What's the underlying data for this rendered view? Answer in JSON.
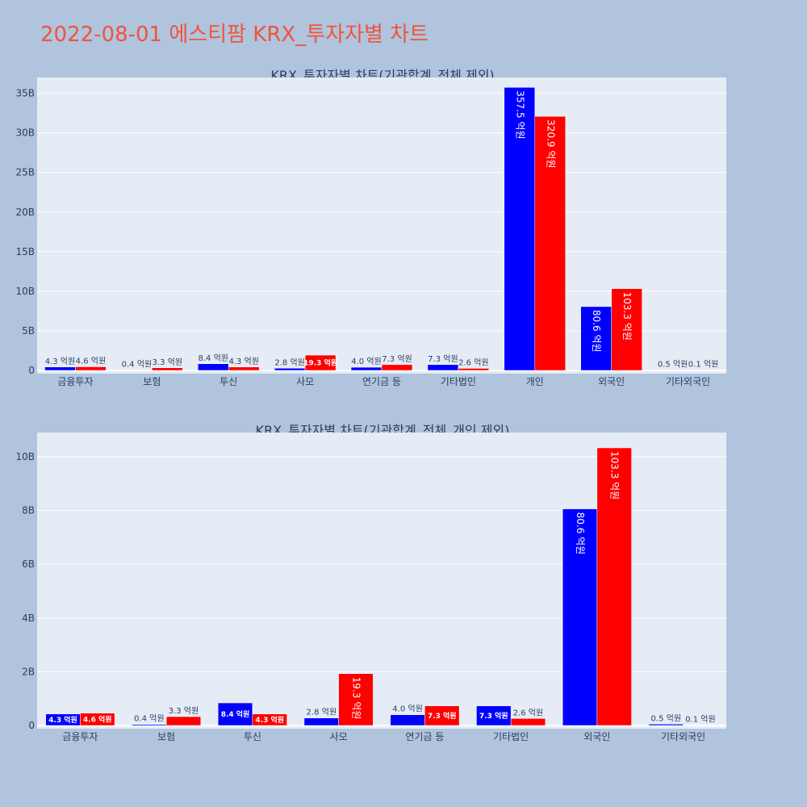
{
  "page": {
    "title": "2022-08-01 에스티팜 KRX_투자자별 차트"
  },
  "colors": {
    "page_background": "#b0c4de",
    "plot_background": "#e5ecf6",
    "title": "#ef553b",
    "series_1": "#0000ff",
    "series_2": "#ff0000",
    "text": "#2a3f5f"
  },
  "chart_data": [
    {
      "type": "bar",
      "title": "KRX_투자자별 차트(기관합계_전체 제외)",
      "categories": [
        "금융투자",
        "보험",
        "투신",
        "사모",
        "연기금 등",
        "기타법인",
        "개인",
        "외국인",
        "기타외국인"
      ],
      "series": [
        {
          "color": "#0000ff",
          "values": [
            0.43,
            0.04,
            0.84,
            0.28,
            0.4,
            0.73,
            35.75,
            8.06,
            0.05
          ],
          "labels": [
            "4.3 억원",
            "0.4 억원",
            "8.4 억원",
            "2.8 억원",
            "4.0 억원",
            "7.3 억원",
            "357.5 억원",
            "80.6 억원",
            "0.5 억원"
          ]
        },
        {
          "color": "#ff0000",
          "values": [
            0.46,
            0.33,
            0.43,
            1.93,
            0.73,
            0.26,
            32.09,
            10.33,
            0.01
          ],
          "labels": [
            "4.6 억원",
            "3.3 억원",
            "4.3 억원",
            "19.3 억원",
            "7.3 억원",
            "2.6 억원",
            "320.9 억원",
            "103.3 억원",
            "0.1 억원"
          ]
        }
      ],
      "ylim": [
        0,
        37
      ],
      "yticks": [
        0,
        5,
        10,
        15,
        20,
        25,
        30,
        35
      ],
      "ytick_labels": [
        "0",
        "5B",
        "10B",
        "15B",
        "20B",
        "25B",
        "30B",
        "35B"
      ],
      "grid": true,
      "legend": "none"
    },
    {
      "type": "bar",
      "title": "KRX_투자자별 차트(기관합계_전체_개인 제외)",
      "categories": [
        "금융투자",
        "보험",
        "투신",
        "사모",
        "연기금 등",
        "기타법인",
        "외국인",
        "기타외국인"
      ],
      "series": [
        {
          "color": "#0000ff",
          "values": [
            0.43,
            0.04,
            0.84,
            0.28,
            0.4,
            0.73,
            8.06,
            0.05
          ],
          "labels": [
            "4.3 억원",
            "0.4 억원",
            "8.4 억원",
            "2.8 억원",
            "4.0 억원",
            "7.3 억원",
            "80.6 억원",
            "0.5 억원"
          ]
        },
        {
          "color": "#ff0000",
          "values": [
            0.46,
            0.33,
            0.43,
            1.93,
            0.73,
            0.26,
            10.33,
            0.01
          ],
          "labels": [
            "4.6 억원",
            "3.3 억원",
            "4.3 억원",
            "19.3 억원",
            "7.3 억원",
            "2.6 억원",
            "103.3 억원",
            "0.1 억원"
          ]
        }
      ],
      "ylim": [
        0,
        10.9
      ],
      "yticks": [
        0,
        2,
        4,
        6,
        8,
        10
      ],
      "ytick_labels": [
        "0",
        "2B",
        "4B",
        "6B",
        "8B",
        "10B"
      ],
      "grid": true,
      "legend": "none"
    }
  ]
}
